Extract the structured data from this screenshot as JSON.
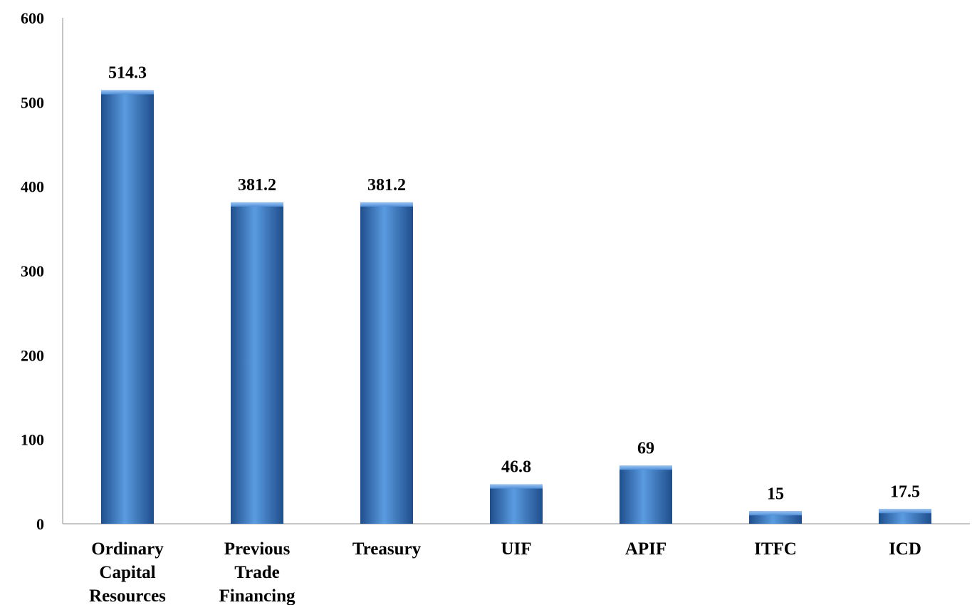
{
  "chart_data": {
    "type": "bar",
    "title": "",
    "xlabel": "",
    "ylabel": "",
    "categories": [
      [
        "Ordinary",
        "Capital",
        "Resources"
      ],
      [
        "Previous",
        "Trade",
        "Financing"
      ],
      [
        "Treasury"
      ],
      [
        "UIF"
      ],
      [
        "APIF"
      ],
      [
        "ITFC"
      ],
      [
        "ICD"
      ]
    ],
    "values": [
      514.3,
      381.2,
      381.2,
      46.8,
      69,
      15,
      17.5
    ],
    "value_labels": [
      "514.3",
      "381.2",
      "381.2",
      "46.8",
      "69",
      "15",
      "17.5"
    ],
    "ylim": [
      0,
      600
    ],
    "yticks": [
      "0",
      "100",
      "200",
      "300",
      "400",
      "500",
      "600"
    ],
    "grid": false,
    "legend": "none",
    "bar_color": "#3d7dcc",
    "bar_color_dark": "#1f4e8c",
    "bar_color_light": "#5a9be0"
  }
}
